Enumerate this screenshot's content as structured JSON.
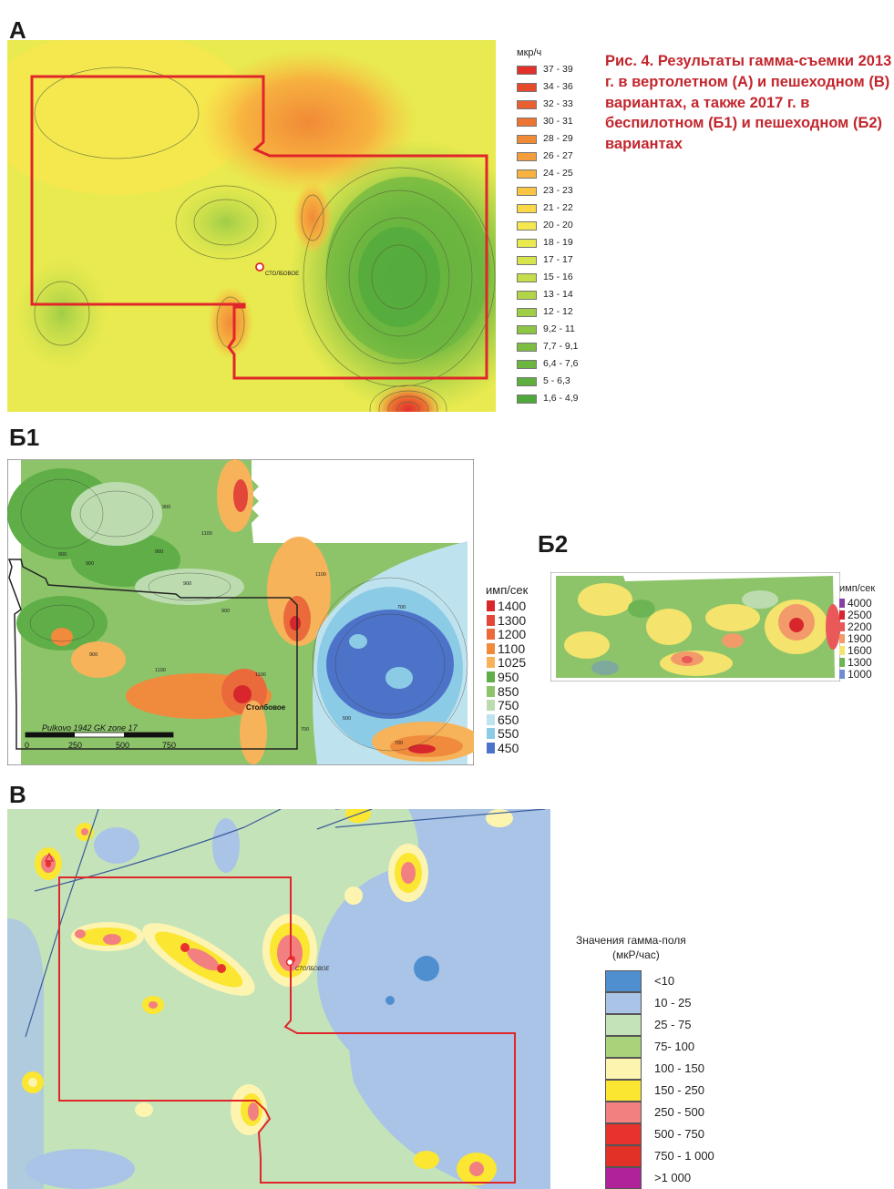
{
  "caption": "Рис. 4. Результаты гамма-съемки 2013 г. в вертолетном (А) и пешеходном (В) вариантах, а также 2017 г. в беспилотном (Б1) и пешеходном (Б2) вариантах",
  "panels": {
    "a": {
      "letter": "А",
      "place_label": "СТОЛБОВОЕ",
      "legend_title": "мкр/ч",
      "legend": [
        {
          "label": "37 - 39",
          "color": "#e2302b"
        },
        {
          "label": "34 - 36",
          "color": "#e64a2c"
        },
        {
          "label": "32 - 33",
          "color": "#ea5f2f"
        },
        {
          "label": "30 - 31",
          "color": "#ee7432"
        },
        {
          "label": "28 - 29",
          "color": "#f18a37"
        },
        {
          "label": "26 - 27",
          "color": "#f49e3b"
        },
        {
          "label": "24 - 25",
          "color": "#f7b23f"
        },
        {
          "label": "23 - 23",
          "color": "#f9c543"
        },
        {
          "label": "21 - 22",
          "color": "#fad848"
        },
        {
          "label": "20 - 20",
          "color": "#f5e84e"
        },
        {
          "label": "18 - 19",
          "color": "#e8ea4f"
        },
        {
          "label": "17 - 17",
          "color": "#d7e44d"
        },
        {
          "label": "15 - 16",
          "color": "#c4dd4b"
        },
        {
          "label": "13 - 14",
          "color": "#b2d548"
        },
        {
          "label": "12 - 12",
          "color": "#a0cd46"
        },
        {
          "label": "9,2 - 11",
          "color": "#8dc544"
        },
        {
          "label": "7,7 - 9,1",
          "color": "#7cbd42"
        },
        {
          "label": "6,4 - 7,6",
          "color": "#6cb640"
        },
        {
          "label": "5 - 6,3",
          "color": "#5daf3e"
        },
        {
          "label": "1,6 - 4,9",
          "color": "#4fa83c"
        }
      ]
    },
    "b1": {
      "letter": "Б1",
      "place_label": "Столбовое",
      "legend_title": "имп/сек",
      "legend": [
        {
          "label": "1400",
          "color": "#d8262d"
        },
        {
          "label": "1300",
          "color": "#e2473a"
        },
        {
          "label": "1200",
          "color": "#ea6a3c"
        },
        {
          "label": "1100",
          "color": "#f08a3c"
        },
        {
          "label": "1025",
          "color": "#f6b35a"
        },
        {
          "label": "950",
          "color": "#5fae47"
        },
        {
          "label": "850",
          "color": "#8dc46a"
        },
        {
          "label": "750",
          "color": "#bcdcb0"
        },
        {
          "label": "650",
          "color": "#bfe3ee"
        },
        {
          "label": "550",
          "color": "#8ccbe6"
        },
        {
          "label": "450",
          "color": "#4d73c8"
        }
      ],
      "contour_labels": [
        "900",
        "900",
        "900",
        "900",
        "900",
        "900",
        "900",
        "1100",
        "1100",
        "1100",
        "1100",
        "700",
        "700",
        "700",
        "500"
      ],
      "scale_title": "Pulkovo 1942 GK zone 17",
      "scale_ticks": [
        "0",
        "250",
        "500",
        "750"
      ]
    },
    "b2": {
      "letter": "Б2",
      "legend_title": "имп/сек",
      "legend": [
        {
          "label": "4000",
          "color": "#8a3fa5"
        },
        {
          "label": "2500",
          "color": "#d8262d"
        },
        {
          "label": "2200",
          "color": "#e9595a"
        },
        {
          "label": "1900",
          "color": "#f39a6a"
        },
        {
          "label": "1600",
          "color": "#f4e36c"
        },
        {
          "label": "1300",
          "color": "#6db554"
        },
        {
          "label": "1000",
          "color": "#6d8fd0"
        }
      ]
    },
    "v": {
      "letter": "В",
      "place_label": "СТОЛБОВОЕ",
      "legend_title_line1": "Значения гамма-поля",
      "legend_title_line2": "(мкР/час)",
      "legend": [
        {
          "label": "<10",
          "color": "#4f8fd0"
        },
        {
          "label": "10 - 25",
          "color": "#a9c4e6"
        },
        {
          "label": "25 - 75",
          "color": "#c5e3b9"
        },
        {
          "label": "75- 100",
          "color": "#a8d37a"
        },
        {
          "label": "100 - 150",
          "color": "#fdf4b0"
        },
        {
          "label": "150 - 250",
          "color": "#fbe631"
        },
        {
          "label": "250 - 500",
          "color": "#f28080"
        },
        {
          "label": "500 - 750",
          "color": "#e8322e"
        },
        {
          "label": "750 - 1 000",
          "color": "#e23126"
        },
        {
          "label": ">1 000",
          "color": "#b0229a"
        }
      ]
    }
  }
}
